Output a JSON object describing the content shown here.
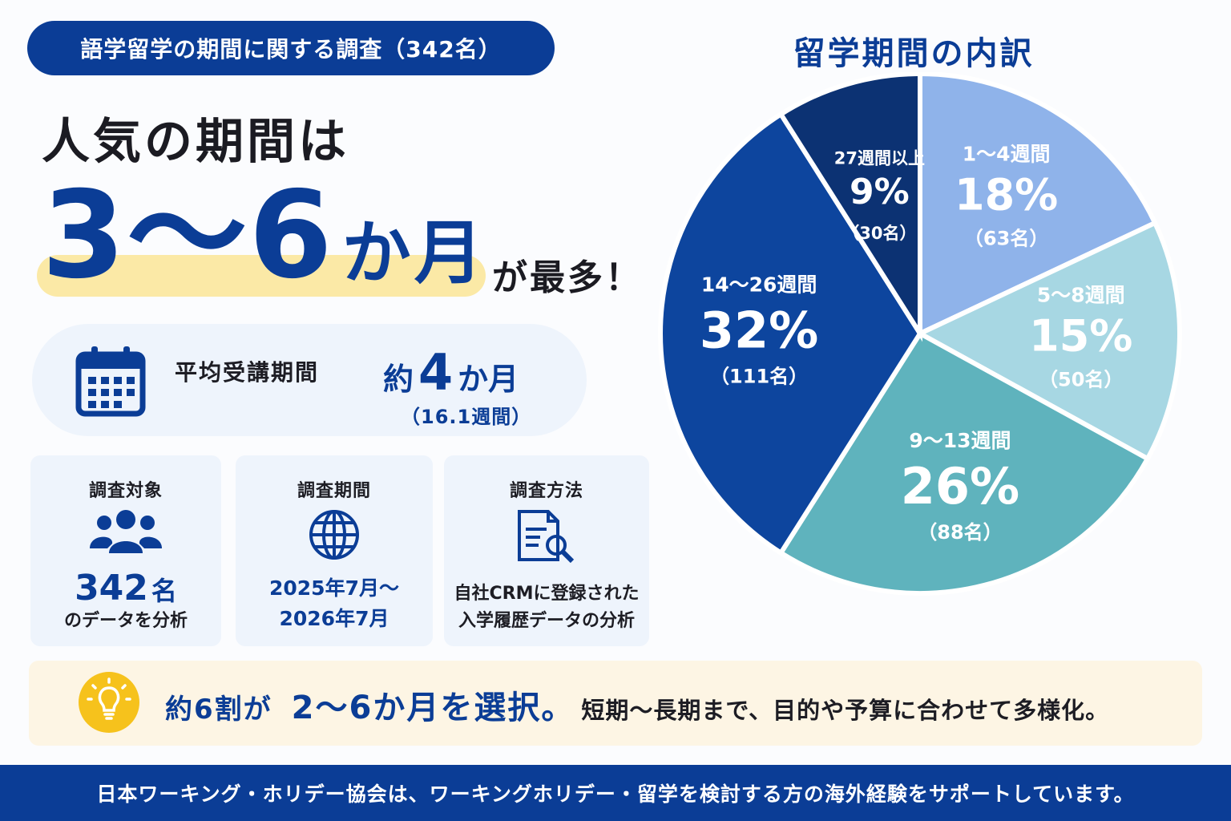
{
  "header": {
    "pill": "語学留学の期間に関する調査（342名）",
    "line1": "人気の期間は",
    "range": "3〜6",
    "unit": "か月",
    "suffix": "が最多！"
  },
  "average": {
    "label": "平均受講期間",
    "prefix": "約",
    "number": "4",
    "unit": "か月",
    "sub": "（16.1週間）",
    "icon": "calendar-icon"
  },
  "cards": [
    {
      "title": "調査対象",
      "icon": "people-icon",
      "big_number": "342",
      "big_unit": "名",
      "text": "のデータを分析"
    },
    {
      "title": "調査期間",
      "icon": "globe-icon",
      "line1": "2025年7月〜",
      "line2": "2026年7月"
    },
    {
      "title": "調査方法",
      "icon": "document-search-icon",
      "line1": "自社CRMに登録された",
      "line2": "入学履歴データの分析"
    }
  ],
  "note": {
    "icon": "lightbulb-icon",
    "part1": "約6割が",
    "part2": "2〜6か月を選択。",
    "part3": "短期〜長期まで、目的や予算に合わせて多様化。"
  },
  "footer": "日本ワーキング・ホリデー協会は、ワーキングホリデー・留学を検討する方の海外経験をサポートしています。",
  "chart_data": {
    "type": "pie",
    "title": "留学期間の内訳",
    "slices": [
      {
        "label": "1〜4週間",
        "percent": 18,
        "percent_text": "18%",
        "count_text": "（63名）",
        "color": "#8fb3ea",
        "text_color": "#ffffff"
      },
      {
        "label": "5〜8週間",
        "percent": 15,
        "percent_text": "15%",
        "count_text": "（50名）",
        "color": "#a7d7e3",
        "text_color": "#ffffff"
      },
      {
        "label": "9〜13週間",
        "percent": 26,
        "percent_text": "26%",
        "count_text": "（88名）",
        "color": "#5fb3bd",
        "text_color": "#ffffff"
      },
      {
        "label": "14〜26週間",
        "percent": 32,
        "percent_text": "32%",
        "count_text": "（111名）",
        "color": "#0d459e",
        "text_color": "#ffffff"
      },
      {
        "label": "27週間以上",
        "percent": 9,
        "percent_text": "9%",
        "count_text": "（30名）",
        "color": "#0c3273",
        "text_color": "#ffffff"
      }
    ]
  },
  "colors": {
    "brand": "#0b3d96",
    "highlight": "#fbe9a6",
    "note_bg": "#fdf5e4",
    "card_bg": "#eef4fc",
    "bulb": "#f6c21c"
  }
}
